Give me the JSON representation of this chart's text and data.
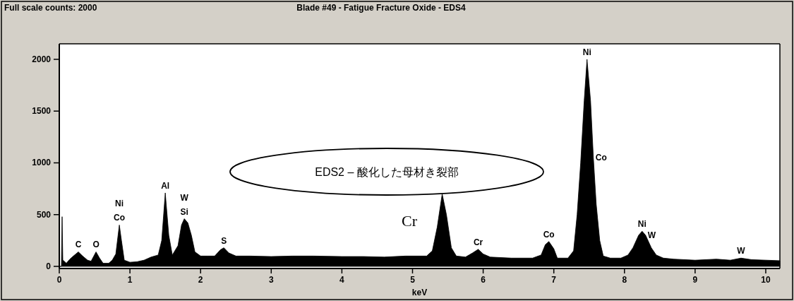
{
  "chart_data": {
    "type": "area",
    "title": "Blade #49 - Fatigue Fracture Oxide - EDS4",
    "xlabel": "keV",
    "x": [
      0,
      0.03,
      0.04,
      0.05,
      0.07,
      0.1,
      0.15,
      0.2,
      0.27,
      0.33,
      0.4,
      0.45,
      0.52,
      0.57,
      0.62,
      0.7,
      0.75,
      0.8,
      0.85,
      0.88,
      0.92,
      1.0,
      1.1,
      1.2,
      1.3,
      1.4,
      1.45,
      1.5,
      1.55,
      1.6,
      1.68,
      1.73,
      1.77,
      1.82,
      1.87,
      1.92,
      2.0,
      2.1,
      2.2,
      2.28,
      2.33,
      2.4,
      2.5,
      2.7,
      3.0,
      3.3,
      3.6,
      4.0,
      4.3,
      4.6,
      4.9,
      5.2,
      5.28,
      5.35,
      5.42,
      5.48,
      5.55,
      5.62,
      5.75,
      5.85,
      5.93,
      6.0,
      6.1,
      6.4,
      6.7,
      6.82,
      6.88,
      6.93,
      7.0,
      7.05,
      7.2,
      7.28,
      7.33,
      7.38,
      7.43,
      7.47,
      7.52,
      7.56,
      7.6,
      7.65,
      7.7,
      7.8,
      7.95,
      8.05,
      8.12,
      8.2,
      8.25,
      8.3,
      8.38,
      8.45,
      8.55,
      8.7,
      9.0,
      9.3,
      9.5,
      9.65,
      9.8,
      10.0,
      10.2
    ],
    "series": [
      {
        "color": "#000000",
        "values": [
          0,
          0,
          480,
          60,
          50,
          30,
          70,
          100,
          140,
          100,
          60,
          50,
          140,
          80,
          30,
          30,
          60,
          120,
          400,
          250,
          60,
          40,
          45,
          60,
          90,
          110,
          250,
          710,
          300,
          110,
          200,
          400,
          460,
          420,
          300,
          140,
          100,
          100,
          100,
          160,
          180,
          130,
          100,
          100,
          95,
          100,
          100,
          95,
          95,
          90,
          100,
          100,
          150,
          380,
          700,
          500,
          180,
          100,
          90,
          130,
          165,
          120,
          90,
          80,
          80,
          110,
          210,
          240,
          170,
          80,
          80,
          150,
          500,
          1000,
          1600,
          2000,
          1600,
          1050,
          600,
          250,
          100,
          80,
          80,
          110,
          180,
          300,
          340,
          300,
          180,
          110,
          80,
          70,
          60,
          70,
          60,
          80,
          65,
          60,
          55
        ]
      }
    ],
    "xlim": [
      0,
      10.2
    ],
    "ylim": [
      0,
      2150
    ],
    "xticks": [
      0,
      1,
      2,
      3,
      4,
      5,
      6,
      7,
      8,
      9,
      10
    ],
    "yticks": [
      0,
      500,
      1000,
      1500,
      2000
    ],
    "grid": false,
    "annotations": [
      "Full scale counts: 2000",
      "EDS2 – 酸化した母材き裂部",
      "Cr",
      {
        "text": "C",
        "x": 0.27,
        "y": 140
      },
      {
        "text": "O",
        "x": 0.52,
        "y": 140
      },
      {
        "text": "Co",
        "x": 0.85,
        "y": 400
      },
      {
        "text": "Ni",
        "x": 0.85,
        "y": 400
      },
      {
        "text": "Al",
        "x": 1.5,
        "y": 710
      },
      {
        "text": "Si",
        "x": 1.77,
        "y": 460
      },
      {
        "text": "W",
        "x": 1.77,
        "y": 460
      },
      {
        "text": "S",
        "x": 2.33,
        "y": 180
      },
      {
        "text": "Cr",
        "x": 5.93,
        "y": 165
      },
      {
        "text": "Co",
        "x": 6.93,
        "y": 240
      },
      {
        "text": "Ni",
        "x": 7.47,
        "y": 2000
      },
      {
        "text": "Co",
        "x": 7.56,
        "y": 1050
      },
      {
        "text": "Ni",
        "x": 8.25,
        "y": 340
      },
      {
        "text": "W",
        "x": 8.3,
        "y": 300
      },
      {
        "text": "W",
        "x": 9.65,
        "y": 80
      }
    ]
  }
}
